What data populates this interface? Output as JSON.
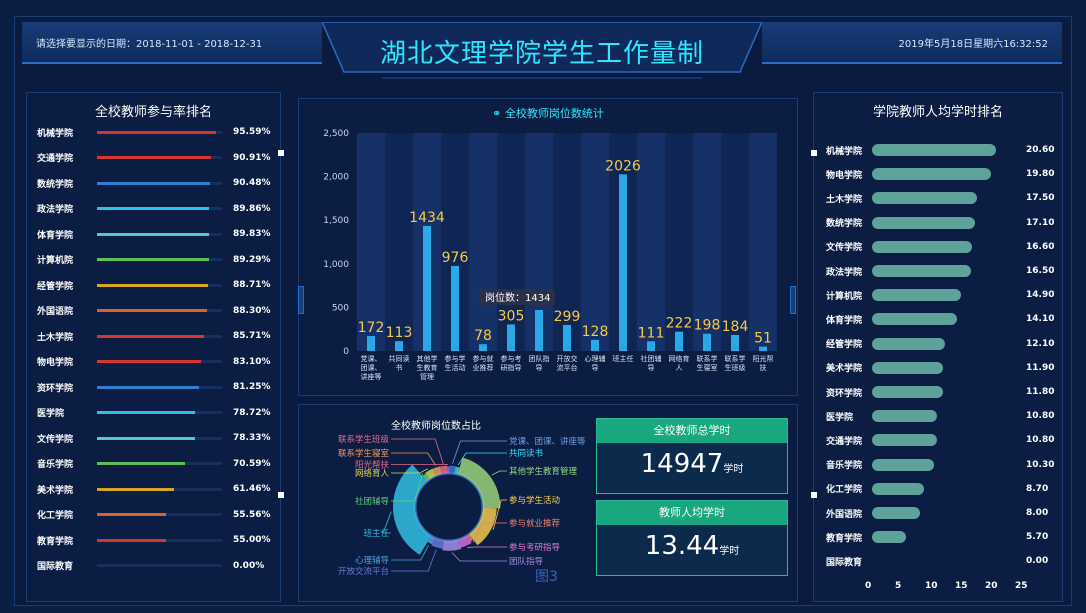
{
  "header": {
    "date_label": "请选择要显示的日期：2018-11-01 - 2018-12-31",
    "title": "湖北文理学院学生工作量制",
    "datetime": "2019年5月18日星期六16:32:52"
  },
  "left_panel": {
    "title": "全校教师参与率排名",
    "items": [
      {
        "name": "机械学院",
        "value": "95.59%",
        "pct": 95.59,
        "color": "#d9362b"
      },
      {
        "name": "交通学院",
        "value": "90.91%",
        "pct": 90.91,
        "color": "#d9362b"
      },
      {
        "name": "数统学院",
        "value": "90.48%",
        "pct": 90.48,
        "color": "#2f80d1"
      },
      {
        "name": "政法学院",
        "value": "89.86%",
        "pct": 89.86,
        "color": "#2ec1e8"
      },
      {
        "name": "体育学院",
        "value": "89.83%",
        "pct": 89.83,
        "color": "#53c9cf"
      },
      {
        "name": "计算机院",
        "value": "89.29%",
        "pct": 89.29,
        "color": "#5cc05a"
      },
      {
        "name": "经管学院",
        "value": "88.71%",
        "pct": 88.71,
        "color": "#d7a51f"
      },
      {
        "name": "外国语院",
        "value": "88.30%",
        "pct": 88.3,
        "color": "#d9632b"
      },
      {
        "name": "土木学院",
        "value": "85.71%",
        "pct": 85.71,
        "color": "#d9362b"
      },
      {
        "name": "物电学院",
        "value": "83.10%",
        "pct": 83.1,
        "color": "#d9362b"
      },
      {
        "name": "资环学院",
        "value": "81.25%",
        "pct": 81.25,
        "color": "#2f80d1"
      },
      {
        "name": "医学院",
        "value": "78.72%",
        "pct": 78.72,
        "color": "#2ec1e8"
      },
      {
        "name": "文传学院",
        "value": "78.33%",
        "pct": 78.33,
        "color": "#53c9cf"
      },
      {
        "name": "音乐学院",
        "value": "70.59%",
        "pct": 70.59,
        "color": "#5cc05a"
      },
      {
        "name": "美术学院",
        "value": "61.46%",
        "pct": 61.46,
        "color": "#d7a51f"
      },
      {
        "name": "化工学院",
        "value": "55.56%",
        "pct": 55.56,
        "color": "#d9632b"
      },
      {
        "name": "教育学院",
        "value": "55.00%",
        "pct": 55.0,
        "color": "#d9362b"
      },
      {
        "name": "国际教育",
        "value": "0.00%",
        "pct": 0.0,
        "color": "#d9362b"
      }
    ]
  },
  "right_panel": {
    "title": "学院教师人均学时排名",
    "axis_ticks": [
      "0",
      "5",
      "10",
      "15",
      "20",
      "25"
    ],
    "items": [
      {
        "name": "机械学院",
        "value": "20.60",
        "num": 20.6
      },
      {
        "name": "物电学院",
        "value": "19.80",
        "num": 19.8
      },
      {
        "name": "土木学院",
        "value": "17.50",
        "num": 17.5
      },
      {
        "name": "数统学院",
        "value": "17.10",
        "num": 17.1
      },
      {
        "name": "文传学院",
        "value": "16.60",
        "num": 16.6
      },
      {
        "name": "政法学院",
        "value": "16.50",
        "num": 16.5
      },
      {
        "name": "计算机院",
        "value": "14.90",
        "num": 14.9
      },
      {
        "name": "体育学院",
        "value": "14.10",
        "num": 14.1
      },
      {
        "name": "经管学院",
        "value": "12.10",
        "num": 12.1
      },
      {
        "name": "美术学院",
        "value": "11.90",
        "num": 11.9
      },
      {
        "name": "资环学院",
        "value": "11.80",
        "num": 11.8
      },
      {
        "name": "医学院",
        "value": "10.80",
        "num": 10.8
      },
      {
        "name": "交通学院",
        "value": "10.80",
        "num": 10.8
      },
      {
        "name": "音乐学院",
        "value": "10.30",
        "num": 10.3
      },
      {
        "name": "化工学院",
        "value": "8.70",
        "num": 8.7
      },
      {
        "name": "外国语院",
        "value": "8.00",
        "num": 8.0
      },
      {
        "name": "教育学院",
        "value": "5.70",
        "num": 5.7
      },
      {
        "name": "国际教育",
        "value": "0.00",
        "num": 0.0
      }
    ]
  },
  "chart_data": [
    {
      "type": "bar",
      "title": "全校教师岗位数统计",
      "categories": [
        [
          "党课、",
          "团课、",
          "讲座等"
        ],
        [
          "共同读",
          "书"
        ],
        [
          "其他学",
          "生教育",
          "管理"
        ],
        [
          "参与学",
          "生活动"
        ],
        [
          "参与就",
          "业推荐"
        ],
        [
          "参与考",
          "研指导"
        ],
        [
          "团队指",
          "导"
        ],
        [
          "开放交",
          "流平台"
        ],
        [
          "心理辅",
          "导"
        ],
        [
          "班主任"
        ],
        [
          "社团辅",
          "导"
        ],
        [
          "网络育",
          "人"
        ],
        [
          "联系学",
          "生寝室"
        ],
        [
          "联系学",
          "生班级"
        ],
        [
          "阳光帮",
          "扶"
        ]
      ],
      "values": [
        172,
        113,
        1434,
        976,
        78,
        305,
        470,
        299,
        128,
        2026,
        111,
        222,
        198,
        184,
        51
      ],
      "value_labels": [
        "172",
        "113",
        "1434",
        "976",
        "78",
        "305",
        "",
        "299",
        "128",
        "2026",
        "111",
        "222",
        "198",
        "184",
        "51"
      ],
      "ylim": [
        0,
        2500
      ],
      "yticks": [
        "0",
        "500",
        "1,000",
        "1,500",
        "2,000",
        "2,500"
      ],
      "tooltip": "岗位数：1434"
    },
    {
      "type": "pie",
      "title": "全校教师岗位数占比",
      "labels": [
        "党课、团课、讲座等",
        "共同读书",
        "其他学生教育管理",
        "参与学生活动",
        "参与就业推荐",
        "参与考研指导",
        "团队指导",
        "开放交流平台",
        "心理辅导",
        "班主任",
        "社团辅导",
        "网络育人",
        "联系学生寝室",
        "联系学生班级",
        "阳光帮扶"
      ],
      "values": [
        172,
        113,
        1434,
        976,
        78,
        305,
        470,
        299,
        128,
        2026,
        111,
        222,
        198,
        184,
        51
      ],
      "colors": [
        "#2e7bd8",
        "#53c9cf",
        "#9ad27a",
        "#f1c94a",
        "#e9816b",
        "#d96bd1",
        "#a58ee6",
        "#6a78d8",
        "#4aa3e0",
        "#32bfe3",
        "#5fcf7e",
        "#c8d94a",
        "#f39a5b",
        "#e86a8f",
        "#b66be0"
      ],
      "label_colors": [
        "#6fa0e6",
        "#2ee6ff",
        "#8fe084",
        "#f7d35a",
        "#f0826d",
        "#e77ad4",
        "#a58ee6",
        "#6a78d8",
        "#4aa3e0",
        "#32bfe3",
        "#5fcf7e",
        "#e2d64e",
        "#f39a5b",
        "#e86a8f",
        "#e86a8f"
      ],
      "watermark": "图3"
    }
  ],
  "stats": {
    "total_hours_label": "全校教师总学时",
    "total_hours_value": "14947",
    "total_hours_unit": "学时",
    "avg_hours_label": "教师人均学时",
    "avg_hours_value": "13.44",
    "avg_hours_unit": "学时"
  },
  "colors": {
    "accent": "#2ee6ff",
    "bar_value": "#f7c948",
    "bar_fill": "#2aa8e8",
    "right_bar": "#5fa29c",
    "stat_header": "#19a77f"
  }
}
